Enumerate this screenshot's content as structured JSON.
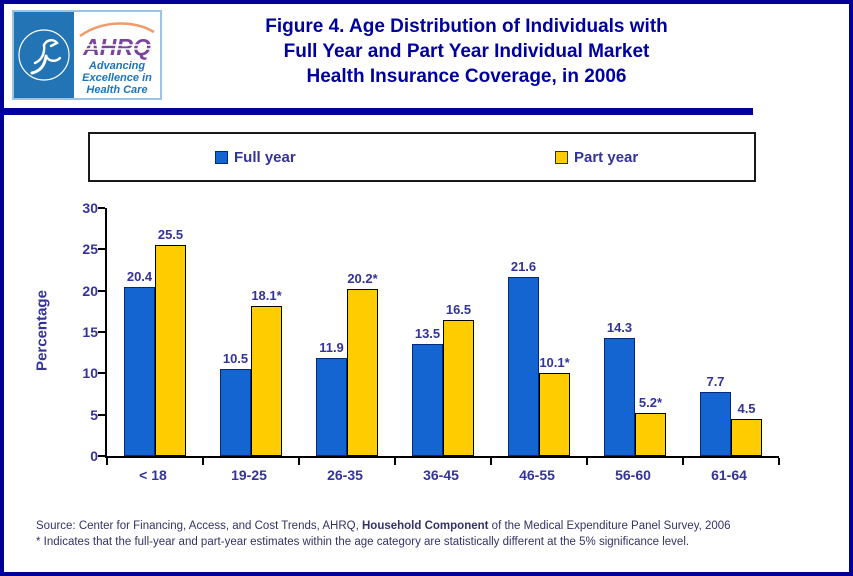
{
  "header": {
    "logo": {
      "ahrq": "AHRQ",
      "tagline_lines": [
        "Advancing",
        "Excellence in",
        "Health Care"
      ]
    },
    "title_lines": [
      "Figure 4. Age Distribution of Individuals with",
      "Full Year and Part Year Individual Market",
      "Health Insurance Coverage, in 2006"
    ]
  },
  "legend": {
    "items": [
      {
        "label": "Full year",
        "color": "#1464D2"
      },
      {
        "label": "Part year",
        "color": "#FFCC00"
      }
    ]
  },
  "chart_data": {
    "type": "bar",
    "title": "Figure 4. Age Distribution of Individuals with Full Year and Part Year Individual Market Health Insurance Coverage, in 2006",
    "categories": [
      "< 18",
      "19-25",
      "26-35",
      "36-45",
      "46-55",
      "56-60",
      "61-64"
    ],
    "series": [
      {
        "name": "Full year",
        "color": "#1464D2",
        "border": "#00297A",
        "values": [
          20.4,
          10.5,
          11.9,
          13.5,
          21.6,
          14.3,
          7.7
        ],
        "labels": [
          "20.4",
          "10.5",
          "11.9",
          "13.5",
          "21.6",
          "14.3",
          "7.7"
        ]
      },
      {
        "name": "Part year",
        "color": "#FFCC00",
        "border": "#000000",
        "values": [
          25.5,
          18.1,
          20.2,
          16.5,
          10.1,
          5.2,
          4.5
        ],
        "labels": [
          "25.5",
          "18.1*",
          "20.2*",
          "16.5",
          "10.1*",
          "5.2*",
          "4.5"
        ]
      }
    ],
    "xlabel": "",
    "ylabel": "Percentage",
    "ylim": [
      0,
      30
    ],
    "yticks": [
      0,
      5,
      10,
      15,
      20,
      25,
      30
    ],
    "grid": false,
    "legend_position": "top"
  },
  "footer": {
    "source_prefix": "Source: Center for Financing, Access, and Cost Trends, AHRQ, ",
    "source_bold": "Household Component",
    "source_suffix": " of the Medical Expenditure Panel Survey, 2006",
    "note": "* Indicates that the full-year and part-year estimates within the age category are statistically different at the 5% significance level."
  },
  "colors": {
    "accent_navy": "#0000A0",
    "bar_blue": "#1464D2",
    "bar_yellow": "#FFCC00",
    "chart_text": "#333399",
    "source_text": "#333366"
  }
}
